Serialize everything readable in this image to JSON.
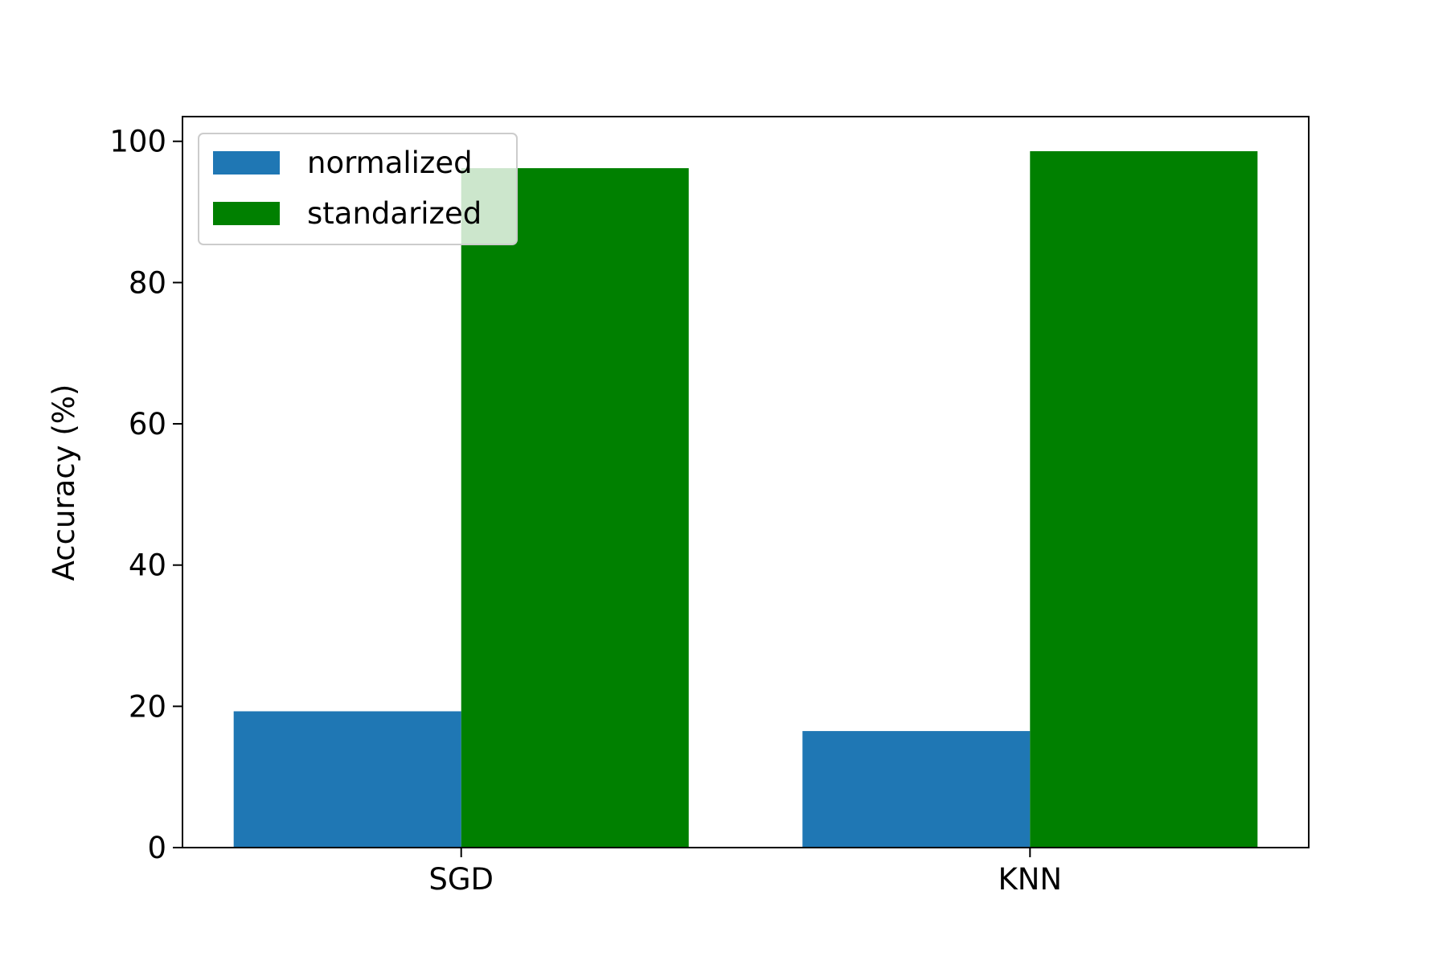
{
  "chart_data": {
    "type": "bar",
    "title": "",
    "xlabel": "",
    "ylabel": "Accuracy (%)",
    "categories": [
      "SGD",
      "KNN"
    ],
    "series": [
      {
        "name": "normalized",
        "values": [
          19.3,
          16.5
        ],
        "color": "#1f77b4"
      },
      {
        "name": "standarized",
        "values": [
          96.2,
          98.6
        ],
        "color": "#008000"
      }
    ],
    "ylim": [
      0,
      103.5
    ],
    "yticks": [
      0,
      20,
      40,
      60,
      80,
      100
    ],
    "grid": false,
    "legend_position": "upper-left"
  }
}
